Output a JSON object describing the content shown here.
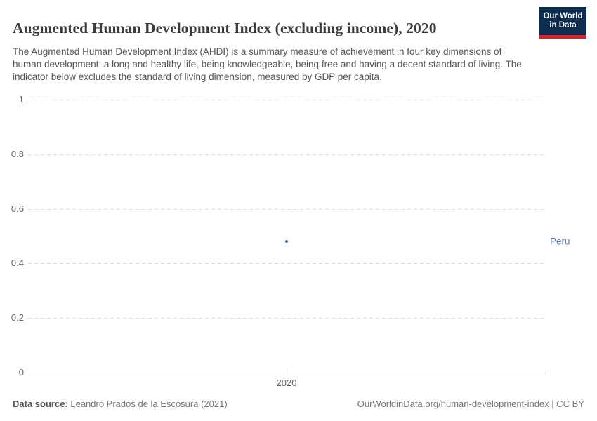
{
  "header": {
    "title": "Augmented Human Development Index (excluding income), 2020",
    "subtitle": "The Augmented Human Development Index (AHDI) is a summary measure of achievement in four key dimensions of human development: a long and healthy life, being knowledgeable, being free and having a decent standard of living. The indicator below excludes the standard of living dimension, measured by GDP per capita.",
    "logo": {
      "line1": "Our World",
      "line2": "in Data",
      "bg_color": "#0d2e51",
      "bar_color": "#d0232a"
    }
  },
  "chart_data": {
    "type": "scatter",
    "title": "Augmented Human Development Index (excluding income), 2020",
    "xlabel": "",
    "ylabel": "",
    "x": [
      2020
    ],
    "xticks": [
      "2020"
    ],
    "ylim": [
      0,
      1
    ],
    "yticks": [
      0,
      0.2,
      0.4,
      0.6,
      0.8,
      1
    ],
    "grid": "horizontal-dashed",
    "legend_position": "right-of-point",
    "series": [
      {
        "name": "Peru",
        "x": [
          2020
        ],
        "values": [
          0.48
        ],
        "point_color": "#3d649f",
        "label_color": "#5e7cb2"
      }
    ]
  },
  "footer": {
    "source_label": "Data source:",
    "source_value": " Leandro Prados de la Escosura (2021)",
    "right_text": "OurWorldinData.org/human-development-index | CC BY"
  }
}
